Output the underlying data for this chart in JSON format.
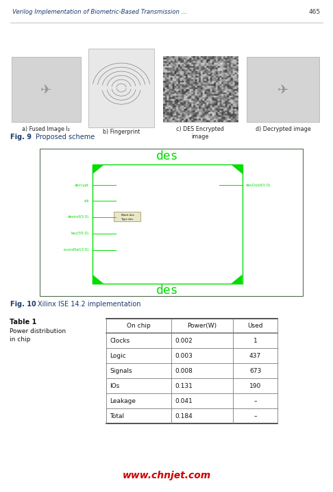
{
  "header_text": "Verilog Implementation of Biometric-Based Transmission …",
  "page_number": "465",
  "fig9_label": "Fig. 9",
  "fig9_caption": "Proposed scheme",
  "fig10_label": "Fig. 10",
  "fig10_caption": "Xilinx ISE 14.2 implementation",
  "table_label": "Table 1",
  "table_caption": "Power distribution\nin chip",
  "table_headers": [
    "On chip",
    "Power(W)",
    "Used"
  ],
  "table_rows": [
    [
      "Clocks",
      "0.002",
      "1"
    ],
    [
      "Logic",
      "0.003",
      "437"
    ],
    [
      "Signals",
      "0.008",
      "673"
    ],
    [
      "IOs",
      "0.131",
      "190"
    ],
    [
      "Leakage",
      "0.041",
      "–"
    ],
    [
      "Total",
      "0.184",
      "–"
    ]
  ],
  "watermark": "www.chnjet.com",
  "subfig_labels": [
    "a) Fused Image I₂",
    "b) Fingerprint",
    "c) DES Encrypted\nimage",
    "d) Decrypted image"
  ],
  "bg_color": "#ffffff",
  "header_color": "#1a3a6b",
  "fig_label_color": "#1a3a6b",
  "green_color": "#00dd00",
  "table_line_color": "#777777",
  "watermark_color": "#cc0000",
  "header_line_color": "#aaaaaa"
}
